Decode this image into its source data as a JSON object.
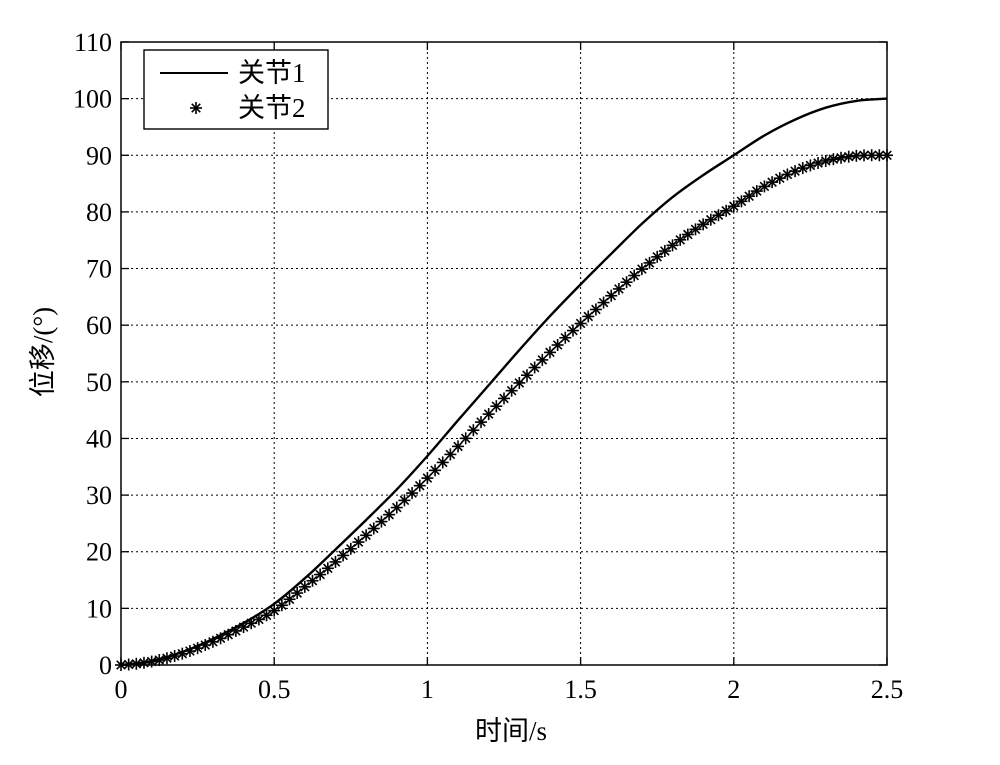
{
  "chart_data": {
    "type": "line",
    "xlabel": "时间/s",
    "ylabel": "位移/(°)",
    "xlim": [
      0,
      2.5
    ],
    "ylim": [
      0,
      110
    ],
    "xticks": [
      0,
      0.5,
      1,
      1.5,
      2,
      2.5
    ],
    "xtick_labels": [
      "0",
      "0.5",
      "1",
      "1.5",
      "2",
      "2.5"
    ],
    "yticks": [
      0,
      10,
      20,
      30,
      40,
      50,
      60,
      70,
      80,
      90,
      100,
      110
    ],
    "ytick_labels": [
      "0",
      "10",
      "20",
      "30",
      "40",
      "50",
      "60",
      "70",
      "80",
      "90",
      "100",
      "110"
    ],
    "grid": true,
    "grid_style": "dotted",
    "legend_position": "top-left",
    "series": [
      {
        "name": "关节1",
        "style": "solid-line",
        "color": "#000000",
        "x": [
          0,
          0.1,
          0.2,
          0.3,
          0.4,
          0.5,
          0.6,
          0.7,
          0.8,
          0.9,
          1.0,
          1.1,
          1.2,
          1.3,
          1.4,
          1.5,
          1.6,
          1.7,
          1.8,
          1.9,
          2.0,
          2.1,
          2.2,
          2.3,
          2.4,
          2.5
        ],
        "y": [
          0,
          0.7,
          2.3,
          4.6,
          7.4,
          10.8,
          15.3,
          20.4,
          25.6,
          31.0,
          36.9,
          43.2,
          49.4,
          55.6,
          61.6,
          67.2,
          72.6,
          77.9,
          82.6,
          86.5,
          90.0,
          93.5,
          96.3,
          98.4,
          99.6,
          100.0
        ]
      },
      {
        "name": "关节2",
        "style": "asterisk-markers",
        "color": "#000000",
        "x": [
          0,
          0.1,
          0.2,
          0.3,
          0.4,
          0.5,
          0.6,
          0.7,
          0.8,
          0.9,
          1.0,
          1.1,
          1.2,
          1.3,
          1.4,
          1.5,
          1.6,
          1.7,
          1.8,
          1.9,
          2.0,
          2.1,
          2.2,
          2.3,
          2.4,
          2.5
        ],
        "y": [
          0,
          0.6,
          2.0,
          4.1,
          6.7,
          9.6,
          13.8,
          18.2,
          22.9,
          27.8,
          33.0,
          38.6,
          44.3,
          49.8,
          55.2,
          60.3,
          65.2,
          69.9,
          74.1,
          77.8,
          81.0,
          84.5,
          87.2,
          89.0,
          89.9,
          90.0
        ]
      }
    ]
  }
}
